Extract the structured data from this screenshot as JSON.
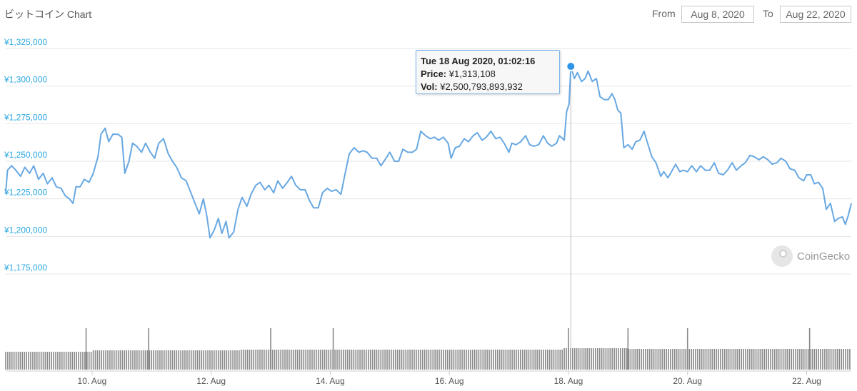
{
  "header": {
    "title": "ビットコイン Chart",
    "from_label": "From",
    "from_value": "Aug 8, 2020",
    "to_label": "To",
    "to_value": "Aug 22, 2020"
  },
  "tooltip": {
    "date": "Tue 18 Aug 2020, 01:02:16",
    "price_label": "Price:",
    "price_value": "¥1,313,108",
    "vol_label": "Vol:",
    "vol_value": "¥2,500,793,893,932"
  },
  "watermark": "CoinGecko",
  "colors": {
    "line": "#68a8e2",
    "marker": "#2f95e8",
    "tick": "#2aa7e0",
    "volume": "#888888"
  },
  "chart_data": {
    "type": "line",
    "ylim": [
      1175000,
      1325000
    ],
    "y_ticks": [
      {
        "value": 1325000,
        "label": "¥1,325,000"
      },
      {
        "value": 1300000,
        "label": "¥1,300,000"
      },
      {
        "value": 1275000,
        "label": "¥1,275,000"
      },
      {
        "value": 1250000,
        "label": "¥1,250,000"
      },
      {
        "value": 1225000,
        "label": "¥1,225,000"
      },
      {
        "value": 1200000,
        "label": "¥1,200,000"
      },
      {
        "value": 1175000,
        "label": "¥1,175,000"
      }
    ],
    "xlim": [
      8.55,
      22.75
    ],
    "x_ticks": [
      {
        "value": 10,
        "label": "10. Aug"
      },
      {
        "value": 12,
        "label": "12. Aug"
      },
      {
        "value": 14,
        "label": "14. Aug"
      },
      {
        "value": 16,
        "label": "16. Aug"
      },
      {
        "value": 18,
        "label": "18. Aug"
      },
      {
        "value": 20,
        "label": "20. Aug"
      },
      {
        "value": 22,
        "label": "22. Aug"
      }
    ],
    "x_unit": "day of August 2020",
    "series": [
      {
        "points": [
          [
            8.55,
            1229000
          ],
          [
            8.58,
            1244000
          ],
          [
            8.65,
            1247000
          ],
          [
            8.72,
            1244000
          ],
          [
            8.8,
            1240000
          ],
          [
            8.87,
            1246000
          ],
          [
            8.95,
            1242000
          ],
          [
            9.02,
            1247000
          ],
          [
            9.1,
            1238000
          ],
          [
            9.18,
            1242000
          ],
          [
            9.25,
            1235000
          ],
          [
            9.33,
            1239000
          ],
          [
            9.4,
            1233000
          ],
          [
            9.48,
            1232000
          ],
          [
            9.55,
            1227000
          ],
          [
            9.62,
            1225000
          ],
          [
            9.68,
            1222000
          ],
          [
            9.73,
            1233000
          ],
          [
            9.8,
            1233000
          ],
          [
            9.87,
            1238000
          ],
          [
            9.95,
            1236000
          ],
          [
            10.02,
            1242000
          ],
          [
            10.1,
            1253000
          ],
          [
            10.15,
            1268000
          ],
          [
            10.22,
            1272000
          ],
          [
            10.28,
            1263000
          ],
          [
            10.35,
            1268000
          ],
          [
            10.43,
            1268000
          ],
          [
            10.5,
            1266000
          ],
          [
            10.55,
            1242000
          ],
          [
            10.62,
            1250000
          ],
          [
            10.68,
            1262000
          ],
          [
            10.75,
            1260000
          ],
          [
            10.83,
            1256000
          ],
          [
            10.9,
            1262000
          ],
          [
            10.98,
            1256000
          ],
          [
            11.05,
            1252000
          ],
          [
            11.12,
            1262000
          ],
          [
            11.2,
            1265000
          ],
          [
            11.28,
            1255000
          ],
          [
            11.35,
            1250000
          ],
          [
            11.42,
            1246000
          ],
          [
            11.5,
            1239000
          ],
          [
            11.58,
            1237000
          ],
          [
            11.65,
            1230000
          ],
          [
            11.73,
            1222000
          ],
          [
            11.8,
            1215000
          ],
          [
            11.87,
            1225000
          ],
          [
            11.93,
            1213000
          ],
          [
            11.98,
            1199000
          ],
          [
            12.05,
            1204000
          ],
          [
            12.12,
            1212000
          ],
          [
            12.18,
            1202000
          ],
          [
            12.25,
            1210000
          ],
          [
            12.3,
            1199000
          ],
          [
            12.38,
            1203000
          ],
          [
            12.45,
            1218000
          ],
          [
            12.52,
            1226000
          ],
          [
            12.6,
            1220000
          ],
          [
            12.67,
            1228000
          ],
          [
            12.75,
            1234000
          ],
          [
            12.82,
            1236000
          ],
          [
            12.9,
            1231000
          ],
          [
            12.97,
            1234000
          ],
          [
            13.05,
            1229000
          ],
          [
            13.12,
            1237000
          ],
          [
            13.2,
            1232000
          ],
          [
            13.28,
            1236000
          ],
          [
            13.35,
            1240000
          ],
          [
            13.42,
            1234000
          ],
          [
            13.5,
            1231000
          ],
          [
            13.58,
            1231000
          ],
          [
            13.65,
            1224000
          ],
          [
            13.72,
            1219000
          ],
          [
            13.8,
            1219000
          ],
          [
            13.87,
            1229000
          ],
          [
            13.95,
            1232000
          ],
          [
            14.02,
            1230000
          ],
          [
            14.1,
            1231000
          ],
          [
            14.18,
            1228000
          ],
          [
            14.25,
            1242000
          ],
          [
            14.32,
            1255000
          ],
          [
            14.4,
            1259000
          ],
          [
            14.48,
            1256000
          ],
          [
            14.55,
            1257000
          ],
          [
            14.62,
            1256000
          ],
          [
            14.7,
            1252000
          ],
          [
            14.78,
            1252000
          ],
          [
            14.85,
            1247000
          ],
          [
            14.92,
            1251000
          ],
          [
            15.0,
            1256000
          ],
          [
            15.08,
            1250000
          ],
          [
            15.15,
            1250000
          ],
          [
            15.22,
            1258000
          ],
          [
            15.3,
            1256000
          ],
          [
            15.38,
            1256000
          ],
          [
            15.45,
            1258000
          ],
          [
            15.52,
            1270000
          ],
          [
            15.6,
            1267000
          ],
          [
            15.68,
            1265000
          ],
          [
            15.75,
            1266000
          ],
          [
            15.82,
            1264000
          ],
          [
            15.9,
            1266000
          ],
          [
            15.98,
            1262000
          ],
          [
            16.03,
            1252000
          ],
          [
            16.1,
            1259000
          ],
          [
            16.17,
            1260000
          ],
          [
            16.25,
            1265000
          ],
          [
            16.32,
            1263000
          ],
          [
            16.4,
            1267000
          ],
          [
            16.47,
            1269000
          ],
          [
            16.55,
            1264000
          ],
          [
            16.62,
            1266000
          ],
          [
            16.7,
            1270000
          ],
          [
            16.78,
            1265000
          ],
          [
            16.85,
            1266000
          ],
          [
            16.92,
            1262000
          ],
          [
            17.0,
            1256000
          ],
          [
            17.05,
            1262000
          ],
          [
            17.12,
            1261000
          ],
          [
            17.2,
            1263000
          ],
          [
            17.28,
            1267000
          ],
          [
            17.35,
            1261000
          ],
          [
            17.42,
            1260000
          ],
          [
            17.5,
            1261000
          ],
          [
            17.58,
            1267000
          ],
          [
            17.65,
            1262000
          ],
          [
            17.72,
            1260000
          ],
          [
            17.8,
            1262000
          ],
          [
            17.85,
            1267000
          ],
          [
            17.93,
            1264000
          ],
          [
            17.97,
            1283000
          ],
          [
            18.01,
            1288000
          ],
          [
            18.04,
            1313000
          ],
          [
            18.1,
            1305000
          ],
          [
            18.15,
            1309000
          ],
          [
            18.22,
            1303000
          ],
          [
            18.28,
            1305000
          ],
          [
            18.33,
            1310000
          ],
          [
            18.4,
            1303000
          ],
          [
            18.47,
            1305000
          ],
          [
            18.53,
            1293000
          ],
          [
            18.6,
            1291000
          ],
          [
            18.67,
            1291000
          ],
          [
            18.73,
            1295000
          ],
          [
            18.78,
            1291000
          ],
          [
            18.83,
            1284000
          ],
          [
            18.88,
            1282000
          ],
          [
            18.93,
            1259000
          ],
          [
            19.0,
            1261000
          ],
          [
            19.07,
            1258000
          ],
          [
            19.13,
            1263000
          ],
          [
            19.2,
            1264000
          ],
          [
            19.27,
            1270000
          ],
          [
            19.33,
            1262000
          ],
          [
            19.4,
            1253000
          ],
          [
            19.47,
            1249000
          ],
          [
            19.55,
            1240000
          ],
          [
            19.6,
            1243000
          ],
          [
            19.67,
            1239000
          ],
          [
            19.73,
            1243000
          ],
          [
            19.8,
            1248000
          ],
          [
            19.87,
            1243000
          ],
          [
            19.93,
            1244000
          ],
          [
            20.0,
            1243000
          ],
          [
            20.07,
            1247000
          ],
          [
            20.15,
            1243000
          ],
          [
            20.22,
            1247000
          ],
          [
            20.3,
            1244000
          ],
          [
            20.37,
            1244000
          ],
          [
            20.45,
            1249000
          ],
          [
            20.52,
            1242000
          ],
          [
            20.6,
            1241000
          ],
          [
            20.67,
            1244000
          ],
          [
            20.75,
            1249000
          ],
          [
            20.82,
            1244000
          ],
          [
            20.9,
            1247000
          ],
          [
            20.97,
            1249000
          ],
          [
            21.05,
            1254000
          ],
          [
            21.12,
            1253000
          ],
          [
            21.2,
            1251000
          ],
          [
            21.27,
            1253000
          ],
          [
            21.35,
            1251000
          ],
          [
            21.42,
            1248000
          ],
          [
            21.5,
            1249000
          ],
          [
            21.57,
            1252000
          ],
          [
            21.65,
            1250000
          ],
          [
            21.72,
            1245000
          ],
          [
            21.8,
            1244000
          ],
          [
            21.87,
            1239000
          ],
          [
            21.95,
            1237000
          ],
          [
            22.0,
            1241000
          ],
          [
            22.07,
            1241000
          ],
          [
            22.13,
            1235000
          ],
          [
            22.2,
            1236000
          ],
          [
            22.27,
            1232000
          ],
          [
            22.33,
            1218000
          ],
          [
            22.4,
            1222000
          ],
          [
            22.47,
            1210000
          ],
          [
            22.53,
            1212000
          ],
          [
            22.6,
            1213000
          ],
          [
            22.65,
            1208000
          ],
          [
            22.7,
            1214000
          ],
          [
            22.75,
            1222000
          ]
        ]
      }
    ],
    "highlight": {
      "x": 18.04,
      "price": 1313108
    },
    "volume_spikes": [
      9.9,
      10.95,
      13.0,
      14.05,
      18.0,
      19.0,
      20.0,
      22.05
    ]
  }
}
